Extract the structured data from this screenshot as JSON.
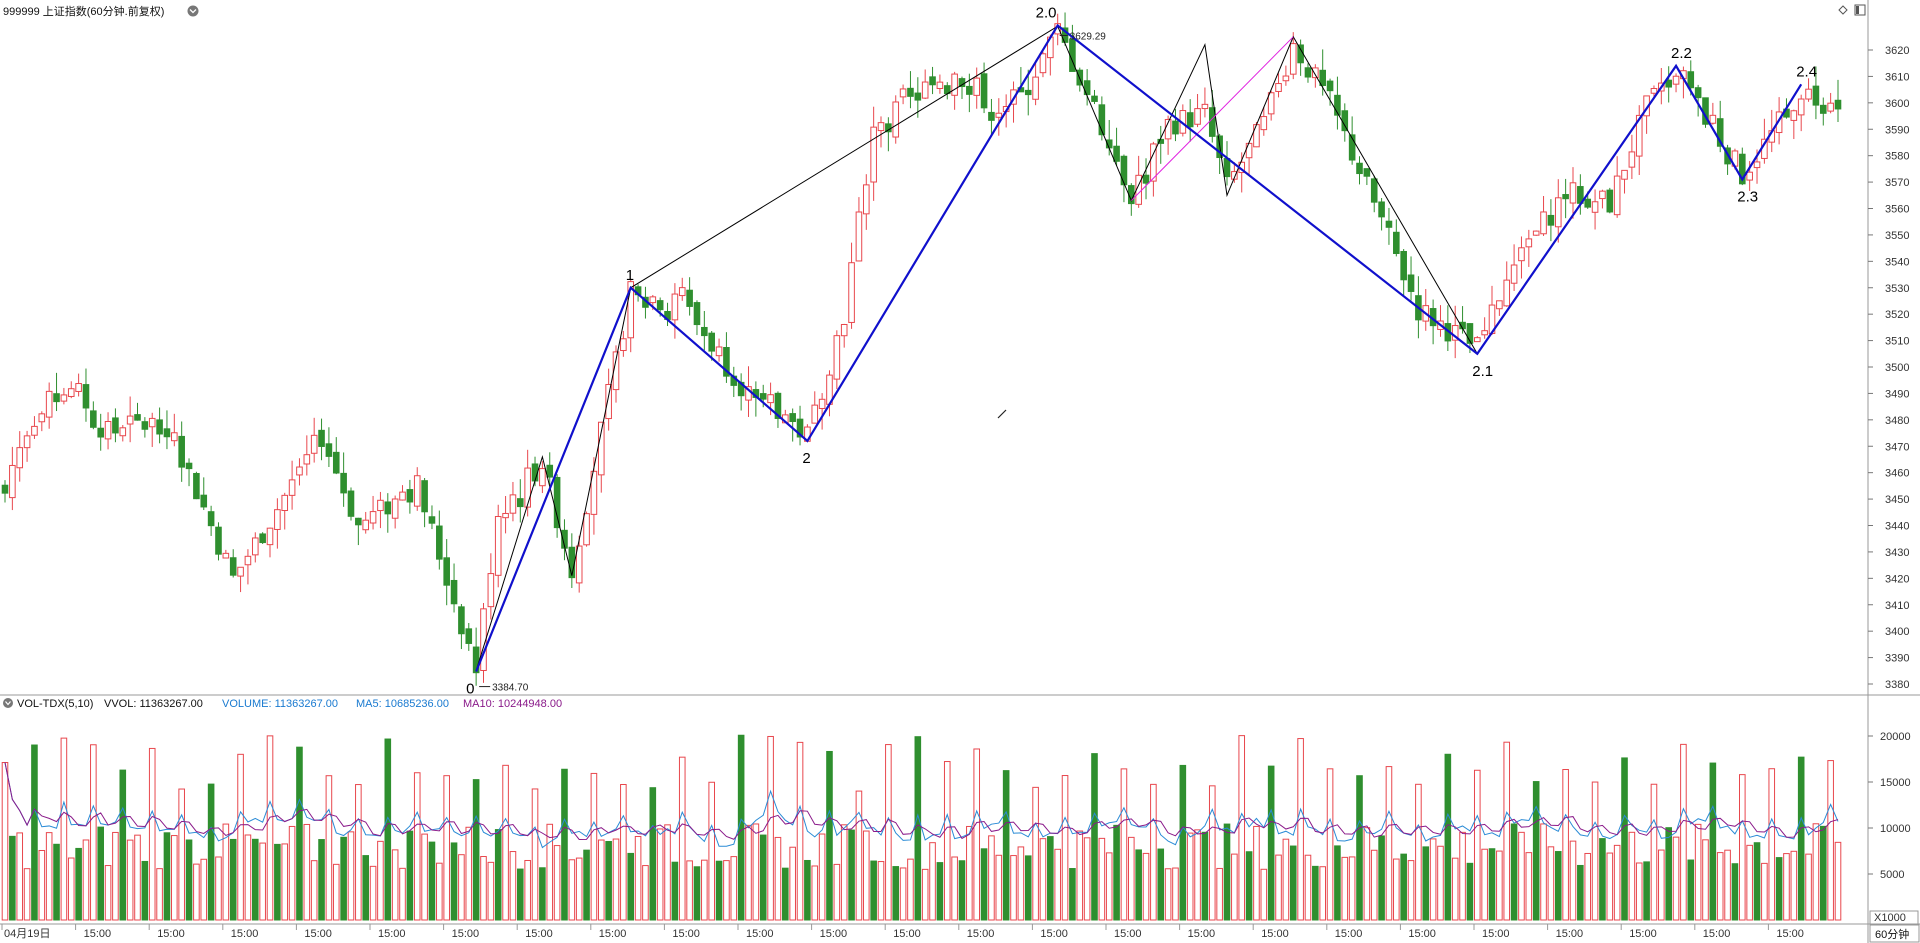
{
  "header": {
    "title": "999999 上证指数(60分钟.前复权)",
    "period_label": "60分钟"
  },
  "price_panel": {
    "ylim": [
      3375,
      3630
    ],
    "y_ticks": [
      3380,
      3390,
      3400,
      3410,
      3420,
      3430,
      3440,
      3450,
      3460,
      3470,
      3480,
      3490,
      3500,
      3510,
      3520,
      3530,
      3540,
      3550,
      3560,
      3570,
      3580,
      3590,
      3600,
      3610,
      3620
    ],
    "high_annotation": "3629.29",
    "low_annotation": "3384.70"
  },
  "volume_panel": {
    "title": "VOL-TDX(5,10)",
    "vvol": "VVOL: 11363267.00",
    "volume": "VOLUME: 11363267.00",
    "ma5": "MA5: 10685236.00",
    "ma10": "MA10: 10244948.00",
    "unit": "X1000",
    "y_ticks": [
      5000,
      10000,
      15000,
      20000
    ],
    "ylim": [
      0,
      22000
    ]
  },
  "x_axis": {
    "first_label": "04月19日",
    "repeat_label": "15:00",
    "label_count": 25
  },
  "colors": {
    "up": "#e8474d",
    "down": "#2f8f2f",
    "wave_main": "#1010cc",
    "wave_sub": "#000000",
    "pink_line": "#e020e0",
    "ma5": "#2a8bd6",
    "ma10": "#8a1a8a"
  },
  "chart_data": {
    "type": "candlestick",
    "bars": 250,
    "pivots": [
      {
        "label": "0",
        "bar": 64,
        "price": 3384.7
      },
      {
        "label": "1",
        "bar": 85,
        "price": 3530
      },
      {
        "label": "2",
        "bar": 109,
        "price": 3472
      },
      {
        "label": "2.0",
        "bar": 143,
        "price": 3629.29
      },
      {
        "label": "2.1",
        "bar": 200,
        "price": 3505
      },
      {
        "label": "2.2",
        "bar": 227,
        "price": 3614
      },
      {
        "label": "2.3",
        "bar": 236,
        "price": 3571
      },
      {
        "label": "2.4",
        "bar": 244,
        "price": 3607
      }
    ],
    "sub_wave": [
      {
        "bar": 64,
        "price": 3385
      },
      {
        "bar": 73,
        "price": 3466
      },
      {
        "bar": 77,
        "price": 3421
      },
      {
        "bar": 85,
        "price": 3530
      },
      {
        "bar": 143,
        "price": 3629
      },
      {
        "bar": 153,
        "price": 3563
      },
      {
        "bar": 163,
        "price": 3622
      },
      {
        "bar": 166,
        "price": 3565
      },
      {
        "bar": 175,
        "price": 3625
      },
      {
        "bar": 200,
        "price": 3505
      }
    ],
    "pink_segment": [
      {
        "bar": 153,
        "price": 3563
      },
      {
        "bar": 175,
        "price": 3625
      }
    ],
    "price_path": [
      {
        "bar": 0,
        "price": 3455
      },
      {
        "bar": 3,
        "price": 3478
      },
      {
        "bar": 8,
        "price": 3492
      },
      {
        "bar": 14,
        "price": 3475
      },
      {
        "bar": 22,
        "price": 3480
      },
      {
        "bar": 28,
        "price": 3440
      },
      {
        "bar": 31,
        "price": 3420
      },
      {
        "bar": 36,
        "price": 3442
      },
      {
        "bar": 43,
        "price": 3474
      },
      {
        "bar": 48,
        "price": 3440
      },
      {
        "bar": 56,
        "price": 3455
      },
      {
        "bar": 60,
        "price": 3420
      },
      {
        "bar": 64,
        "price": 3386
      },
      {
        "bar": 67,
        "price": 3445
      },
      {
        "bar": 73,
        "price": 3464
      },
      {
        "bar": 77,
        "price": 3423
      },
      {
        "bar": 85,
        "price": 3528
      },
      {
        "bar": 92,
        "price": 3524
      },
      {
        "bar": 101,
        "price": 3490
      },
      {
        "bar": 109,
        "price": 3474
      },
      {
        "bar": 114,
        "price": 3520
      },
      {
        "bar": 118,
        "price": 3590
      },
      {
        "bar": 122,
        "price": 3598
      },
      {
        "bar": 126,
        "price": 3608
      },
      {
        "bar": 130,
        "price": 3612
      },
      {
        "bar": 134,
        "price": 3598
      },
      {
        "bar": 138,
        "price": 3602
      },
      {
        "bar": 143,
        "price": 3627
      },
      {
        "bar": 148,
        "price": 3598
      },
      {
        "bar": 153,
        "price": 3566
      },
      {
        "bar": 158,
        "price": 3592
      },
      {
        "bar": 163,
        "price": 3596
      },
      {
        "bar": 166,
        "price": 3568
      },
      {
        "bar": 171,
        "price": 3592
      },
      {
        "bar": 175,
        "price": 3622
      },
      {
        "bar": 180,
        "price": 3600
      },
      {
        "bar": 186,
        "price": 3562
      },
      {
        "bar": 192,
        "price": 3522
      },
      {
        "bar": 200,
        "price": 3507
      },
      {
        "bar": 206,
        "price": 3543
      },
      {
        "bar": 212,
        "price": 3566
      },
      {
        "bar": 218,
        "price": 3562
      },
      {
        "bar": 223,
        "price": 3598
      },
      {
        "bar": 227,
        "price": 3612
      },
      {
        "bar": 232,
        "price": 3590
      },
      {
        "bar": 236,
        "price": 3573
      },
      {
        "bar": 240,
        "price": 3588
      },
      {
        "bar": 244,
        "price": 3605
      },
      {
        "bar": 249,
        "price": 3598
      }
    ]
  }
}
